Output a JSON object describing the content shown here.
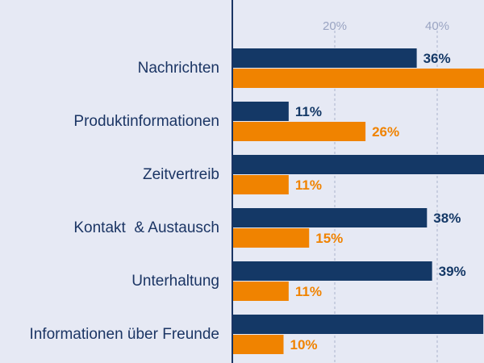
{
  "chart_data": {
    "type": "bar",
    "orientation": "horizontal",
    "categories": [
      "Nachrichten",
      "Produktinformationen",
      "Zeitvertreib",
      "Kontakt  & Austausch",
      "Unterhaltung",
      "Informationen über Freunde"
    ],
    "series": [
      {
        "values": [
          36,
          11,
          50,
          38,
          39,
          49
        ],
        "labels": [
          "36%",
          "11%",
          "",
          "38%",
          "39%",
          ""
        ]
      },
      {
        "values": [
          50,
          26,
          11,
          15,
          11,
          10
        ],
        "labels": [
          "",
          "26%",
          "11%",
          "15%",
          "11%",
          "10%"
        ]
      }
    ],
    "xticks": [
      20,
      40
    ],
    "xtick_labels": [
      "20%",
      "40%"
    ],
    "xlim": [
      0,
      50
    ],
    "grid": "vertical dashed",
    "colors": {
      "series1": "#143866",
      "series2": "#f08300",
      "axis": "#1b3564",
      "grid": "#aab2cc",
      "background": "#e6e9f4"
    },
    "title": "",
    "xlabel": "",
    "ylabel": ""
  }
}
